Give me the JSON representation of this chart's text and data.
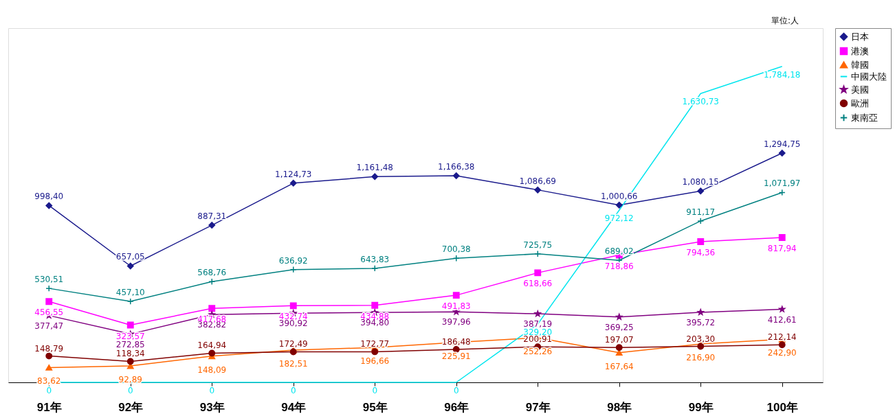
{
  "chart_data": {
    "type": "line",
    "categories": [
      "91年",
      "92年",
      "93年",
      "94年",
      "95年",
      "96年",
      "97年",
      "98年",
      "99年",
      "100年"
    ],
    "ylim": [
      0,
      2000
    ],
    "tick_labels": "x",
    "grid": false,
    "legend": "right",
    "annotations": [
      "單位:人"
    ],
    "series": [
      {
        "name": "日本",
        "color": "#1a1a8c",
        "marker": "diamond",
        "values": [
          998.4,
          657.05,
          887.31,
          1124.73,
          1161.48,
          1166.38,
          1086.69,
          1000.66,
          1080.15,
          1294.75
        ],
        "value_labels": [
          "998,40",
          "657,05",
          "887,31",
          "1,124,73",
          "1,161,48",
          "1,166,38",
          "1,086,69",
          "1,000,66",
          "1,080,15",
          "1,294,75"
        ]
      },
      {
        "name": "港澳",
        "color": "#ff00ff",
        "marker": "square",
        "values": [
          456.55,
          323.57,
          417.68,
          432.74,
          434.88,
          491.83,
          618.66,
          718.86,
          794.36,
          817.94
        ],
        "value_labels": [
          "456,55",
          "323,57",
          "417,68",
          "432,74",
          "434,88",
          "491,83",
          "618,66",
          "718,86",
          "794,36",
          "817,94"
        ]
      },
      {
        "name": "韓國",
        "color": "#ff6600",
        "marker": "triangle",
        "values": [
          83.62,
          92.89,
          148.09,
          182.51,
          196.66,
          225.91,
          252.26,
          167.64,
          216.9,
          242.9
        ],
        "value_labels": [
          "83,62",
          "92,89",
          "148,09",
          "182,51",
          "196,66",
          "225,91",
          "252,26",
          "167,64",
          "216,90",
          "242,90"
        ]
      },
      {
        "name": "中國大陸",
        "color": "#00e5ee",
        "marker": "none",
        "values": [
          0,
          0,
          0,
          0,
          0,
          0,
          329.2,
          972.12,
          1630.73,
          1784.18
        ],
        "value_labels": [
          "0",
          "0",
          "0",
          "0",
          "0",
          "0",
          "329,20",
          "972,12",
          "1,630,73",
          "1,784,18"
        ]
      },
      {
        "name": "美國",
        "color": "#800080",
        "marker": "star",
        "values": [
          377.47,
          272.85,
          382.82,
          390.92,
          394.8,
          397.96,
          387.19,
          369.25,
          395.72,
          412.61
        ],
        "value_labels": [
          "377,47",
          "272,85",
          "382,82",
          "390,92",
          "394,80",
          "397,96",
          "387,19",
          "369,25",
          "395,72",
          "412,61"
        ]
      },
      {
        "name": "歐洲",
        "color": "#800000",
        "marker": "circle",
        "values": [
          148.79,
          118.34,
          164.94,
          172.49,
          172.77,
          186.48,
          200.91,
          197.07,
          203.3,
          212.14
        ],
        "value_labels": [
          "148,79",
          "118,34",
          "164,94",
          "172,49",
          "172,77",
          "186,48",
          "200,91",
          "197,07",
          "203,30",
          "212,14"
        ]
      },
      {
        "name": "東南亞",
        "color": "#008080",
        "marker": "cross",
        "values": [
          530.51,
          457.1,
          568.76,
          636.92,
          643.83,
          700.38,
          725.75,
          689.02,
          911.17,
          1071.97
        ],
        "value_labels": [
          "530,51",
          "457,10",
          "568,76",
          "636,92",
          "643,83",
          "700,38",
          "725,75",
          "689,02",
          "911,17",
          "1,071,97"
        ]
      }
    ]
  }
}
